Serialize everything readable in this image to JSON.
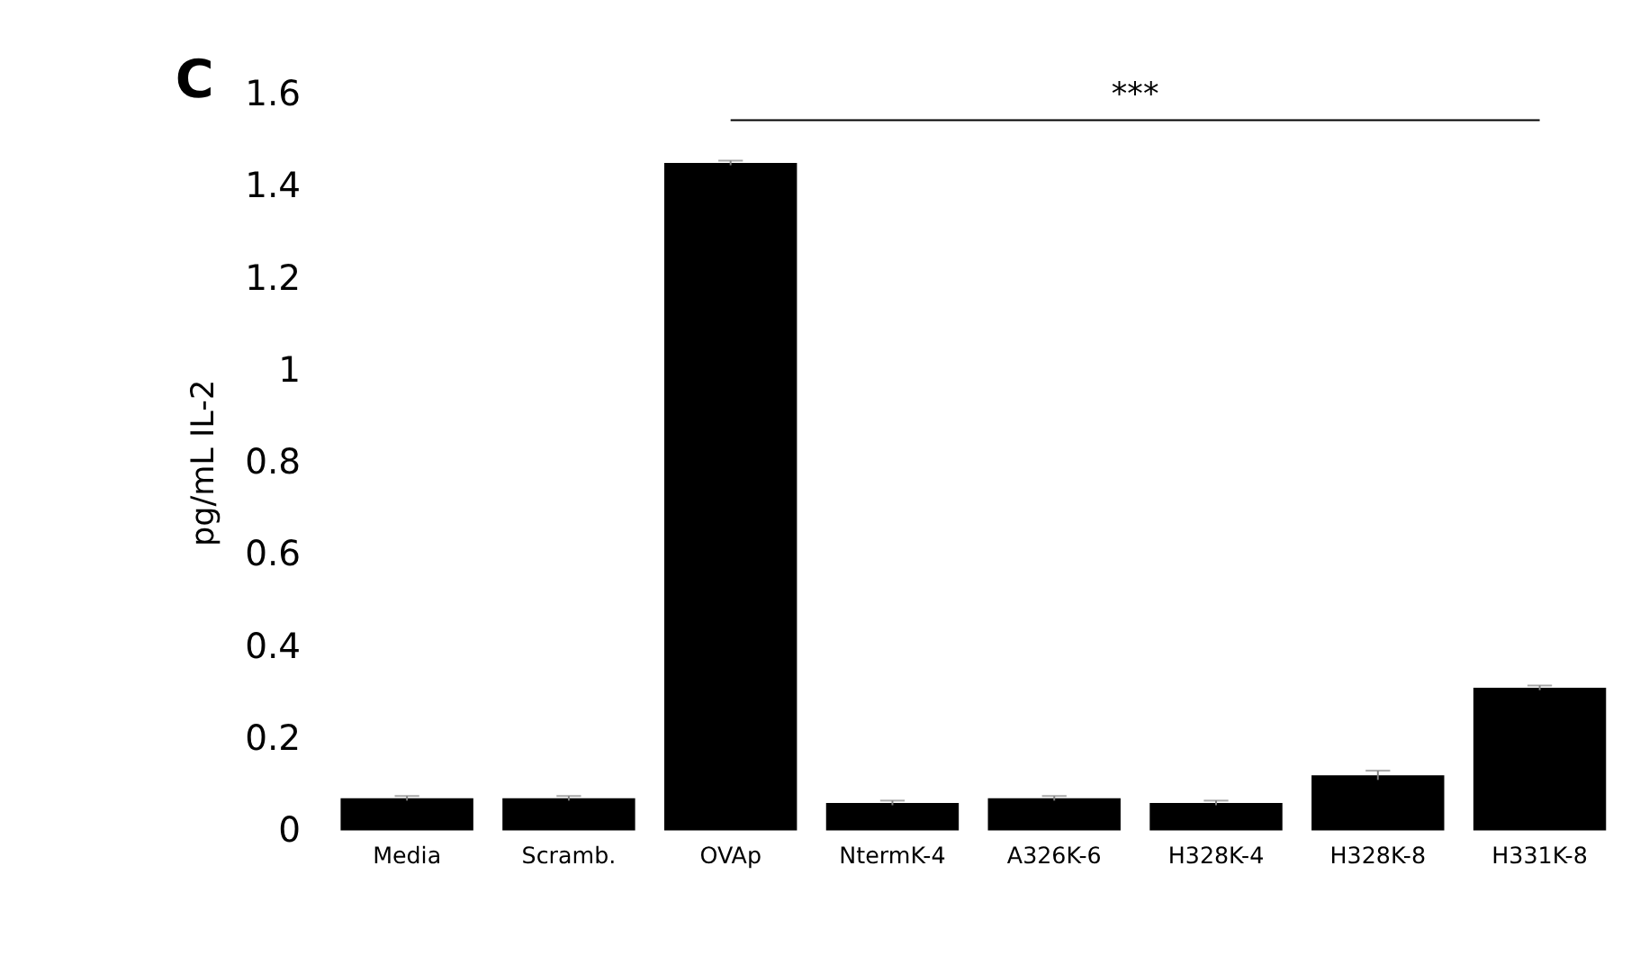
{
  "chart_data": {
    "type": "bar",
    "ylabel": "pg/mL IL-2",
    "categories": [
      "Media",
      "Scramb.",
      "OVAp",
      "NtermK-4",
      "A326K-6",
      "H328K-4",
      "H328K-8",
      "H331K-8"
    ],
    "values": [
      0.07,
      0.07,
      1.45,
      0.06,
      0.07,
      0.06,
      0.12,
      0.31
    ],
    "errors": [
      0.005,
      0.005,
      0.005,
      0.005,
      0.005,
      0.005,
      0.01,
      0.005
    ],
    "color": "#000000",
    "ylim": [
      0,
      1.6
    ],
    "yticks": [
      {
        "value": 0,
        "label": "0"
      },
      0.2,
      0.4,
      0.6,
      0.8,
      {
        "value": 1,
        "label": "1"
      },
      1.2,
      1.4,
      1.6
    ],
    "grid": false,
    "annotations": [
      "C",
      "***"
    ]
  }
}
